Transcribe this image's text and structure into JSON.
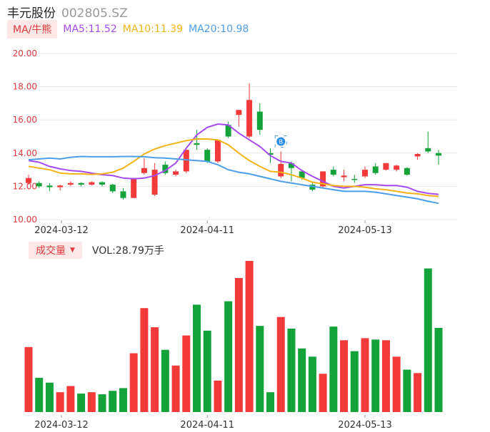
{
  "header": {
    "stock_name": "丰元股份",
    "stock_code": "002805.SZ"
  },
  "ma_legend": {
    "tab_label": "MA/牛熊",
    "items": [
      {
        "label": "MA5:11.52",
        "color": "#a64bef"
      },
      {
        "label": "MA10:11.39",
        "color": "#f3b318"
      },
      {
        "label": "MA20:10.98",
        "color": "#4d9ee8"
      }
    ]
  },
  "volume_legend": {
    "tab_label": "成交量",
    "caret": "▼",
    "value_label": "VOL:28.79万手"
  },
  "colors": {
    "up": "#f23a3a",
    "down": "#13a33a",
    "axis_text": "#e0393e",
    "grid": "#e8e8e8"
  },
  "marker": {
    "icon": "b-marker-icon",
    "text": "B"
  },
  "chart_data": {
    "type": "candlestick",
    "y_ticks": [
      "20.00",
      "18.00",
      "16.00",
      "14.00",
      "12.00",
      "10.00"
    ],
    "ylim": [
      10,
      20
    ],
    "x_ticks": [
      "2024-03-12",
      "2024-04-11",
      "2024-05-13"
    ],
    "x_tick_index": [
      0,
      17,
      32
    ],
    "candles": [
      {
        "o": 12.2,
        "c": 12.5,
        "h": 12.7,
        "l": 12.1
      },
      {
        "o": 12.2,
        "c": 12.0,
        "h": 12.3,
        "l": 11.9
      },
      {
        "o": 12.05,
        "c": 11.95,
        "h": 12.2,
        "l": 11.7
      },
      {
        "o": 11.95,
        "c": 12.05,
        "h": 12.1,
        "l": 11.75
      },
      {
        "o": 12.1,
        "c": 12.2,
        "h": 12.3,
        "l": 12.0
      },
      {
        "o": 12.2,
        "c": 12.1,
        "h": 12.25,
        "l": 12.0
      },
      {
        "o": 12.1,
        "c": 12.25,
        "h": 12.3,
        "l": 12.05
      },
      {
        "o": 12.25,
        "c": 12.1,
        "h": 12.3,
        "l": 12.0
      },
      {
        "o": 12.1,
        "c": 11.7,
        "h": 12.15,
        "l": 11.6
      },
      {
        "o": 11.7,
        "c": 11.3,
        "h": 11.9,
        "l": 11.2
      },
      {
        "o": 11.3,
        "c": 12.5,
        "h": 12.5,
        "l": 11.3
      },
      {
        "o": 12.8,
        "c": 13.1,
        "h": 13.7,
        "l": 12.7
      },
      {
        "o": 11.5,
        "c": 13.0,
        "h": 13.4,
        "l": 11.4
      },
      {
        "o": 13.3,
        "c": 12.8,
        "h": 13.5,
        "l": 12.7
      },
      {
        "o": 12.7,
        "c": 12.9,
        "h": 13.0,
        "l": 12.6
      },
      {
        "o": 12.9,
        "c": 14.2,
        "h": 14.2,
        "l": 12.8
      },
      {
        "o": 14.6,
        "c": 14.5,
        "h": 15.4,
        "l": 14.2
      },
      {
        "o": 14.2,
        "c": 13.5,
        "h": 14.3,
        "l": 13.4
      },
      {
        "o": 13.5,
        "c": 14.8,
        "h": 14.8,
        "l": 13.4
      },
      {
        "o": 15.7,
        "c": 15.0,
        "h": 15.9,
        "l": 14.9
      },
      {
        "o": 16.3,
        "c": 16.6,
        "h": 16.6,
        "l": 15.6
      },
      {
        "o": 15.0,
        "c": 17.2,
        "h": 18.2,
        "l": 14.9
      },
      {
        "o": 16.5,
        "c": 15.4,
        "h": 17.0,
        "l": 15.1
      },
      {
        "o": 14.0,
        "c": 13.9,
        "h": 14.3,
        "l": 13.4
      },
      {
        "o": 12.6,
        "c": 13.35,
        "h": 14.1,
        "l": 12.5
      },
      {
        "o": 13.4,
        "c": 13.1,
        "h": 13.5,
        "l": 12.3
      },
      {
        "o": 12.9,
        "c": 12.5,
        "h": 12.95,
        "l": 12.4
      },
      {
        "o": 12.1,
        "c": 11.8,
        "h": 12.3,
        "l": 11.7
      },
      {
        "o": 12.0,
        "c": 12.9,
        "h": 12.9,
        "l": 11.9
      },
      {
        "o": 13.0,
        "c": 12.7,
        "h": 13.2,
        "l": 12.6
      },
      {
        "o": 12.55,
        "c": 12.65,
        "h": 13.0,
        "l": 12.3
      },
      {
        "o": 12.45,
        "c": 12.4,
        "h": 12.7,
        "l": 12.2
      },
      {
        "o": 12.6,
        "c": 13.0,
        "h": 13.2,
        "l": 12.5
      },
      {
        "o": 13.2,
        "c": 12.8,
        "h": 13.4,
        "l": 12.7
      },
      {
        "o": 13.0,
        "c": 13.4,
        "h": 13.4,
        "l": 12.95
      },
      {
        "o": 13.0,
        "c": 13.25,
        "h": 13.3,
        "l": 12.9
      },
      {
        "o": 13.1,
        "c": 12.7,
        "h": 13.15,
        "l": 12.65
      },
      {
        "o": 13.8,
        "c": 13.95,
        "h": 14.0,
        "l": 13.6
      },
      {
        "o": 14.3,
        "c": 14.1,
        "h": 15.3,
        "l": 14.0
      },
      {
        "o": 14.0,
        "c": 13.85,
        "h": 14.2,
        "l": 13.3
      }
    ],
    "ma5": [
      13.55,
      13.45,
      13.2,
      13.05,
      12.95,
      12.9,
      12.8,
      12.7,
      12.65,
      12.5,
      12.45,
      12.5,
      12.65,
      12.95,
      13.4,
      14.3,
      15.1,
      15.55,
      15.75,
      15.7,
      15.2,
      14.8,
      14.4,
      13.85,
      13.5,
      13.4,
      12.95,
      12.6,
      12.3,
      12.0,
      11.9,
      12.0,
      12.1,
      12.1,
      12.05,
      12.05,
      11.95,
      11.7,
      11.58,
      11.52
    ],
    "ma10": [
      13.2,
      13.1,
      13.0,
      12.8,
      12.75,
      12.75,
      12.72,
      12.75,
      12.85,
      13.1,
      13.5,
      13.95,
      14.25,
      14.45,
      14.6,
      14.75,
      14.85,
      14.85,
      14.8,
      14.5,
      14.0,
      13.55,
      13.2,
      12.9,
      12.85,
      12.7,
      12.5,
      12.25,
      12.15,
      12.05,
      12.0,
      12.0,
      11.95,
      11.85,
      11.8,
      11.7,
      11.6,
      11.55,
      11.45,
      11.39
    ],
    "ma20": [
      13.6,
      13.65,
      13.7,
      13.65,
      13.75,
      13.8,
      13.78,
      13.78,
      13.78,
      13.8,
      13.8,
      13.78,
      13.72,
      13.7,
      13.65,
      13.6,
      13.55,
      13.5,
      13.3,
      13.0,
      12.85,
      12.75,
      12.6,
      12.45,
      12.3,
      12.2,
      12.1,
      12.0,
      11.9,
      11.8,
      11.7,
      11.7,
      11.7,
      11.65,
      11.55,
      11.45,
      11.35,
      11.25,
      11.1,
      10.98
    ],
    "volumes": [
      9.5,
      5.0,
      4.3,
      2.9,
      3.8,
      2.7,
      2.9,
      2.6,
      3.1,
      3.5,
      8.6,
      15.2,
      12.4,
      9.1,
      6.8,
      11.2,
      15.7,
      11.9,
      4.6,
      16.2,
      19.6,
      22.1,
      12.6,
      2.9,
      13.9,
      12.2,
      9.3,
      8.1,
      5.6,
      12.5,
      10.5,
      8.9,
      10.8,
      10.6,
      10.5,
      8.1,
      6.2,
      5.7,
      21.0,
      12.3
    ]
  }
}
